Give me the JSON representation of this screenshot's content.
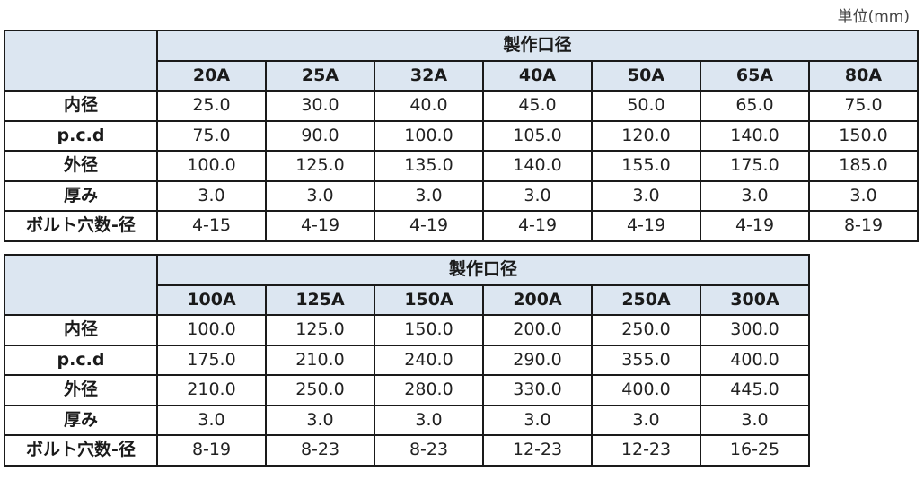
{
  "unit_label": "単位(mm)",
  "row_labels": [
    "内径",
    "p.c.d",
    "外径",
    "厚み",
    "ボルト穴数-径"
  ],
  "table1": {
    "group_header": "製作口径",
    "columns": [
      "20A",
      "25A",
      "32A",
      "40A",
      "50A",
      "65A",
      "80A"
    ],
    "rows": [
      [
        "25.0",
        "30.0",
        "40.0",
        "45.0",
        "50.0",
        "65.0",
        "75.0"
      ],
      [
        "75.0",
        "90.0",
        "100.0",
        "105.0",
        "120.0",
        "140.0",
        "150.0"
      ],
      [
        "100.0",
        "125.0",
        "135.0",
        "140.0",
        "155.0",
        "175.0",
        "185.0"
      ],
      [
        "3.0",
        "3.0",
        "3.0",
        "3.0",
        "3.0",
        "3.0",
        "3.0"
      ],
      [
        "4-15",
        "4-19",
        "4-19",
        "4-19",
        "4-19",
        "4-19",
        "8-19"
      ]
    ]
  },
  "table2": {
    "group_header": "製作口径",
    "columns": [
      "100A",
      "125A",
      "150A",
      "200A",
      "250A",
      "300A"
    ],
    "rows": [
      [
        "100.0",
        "125.0",
        "150.0",
        "200.0",
        "250.0",
        "300.0"
      ],
      [
        "175.0",
        "210.0",
        "240.0",
        "290.0",
        "355.0",
        "400.0"
      ],
      [
        "210.0",
        "250.0",
        "280.0",
        "330.0",
        "400.0",
        "445.0"
      ],
      [
        "3.0",
        "3.0",
        "3.0",
        "3.0",
        "3.0",
        "3.0"
      ],
      [
        "8-19",
        "8-23",
        "8-23",
        "12-23",
        "12-23",
        "16-25"
      ]
    ]
  }
}
